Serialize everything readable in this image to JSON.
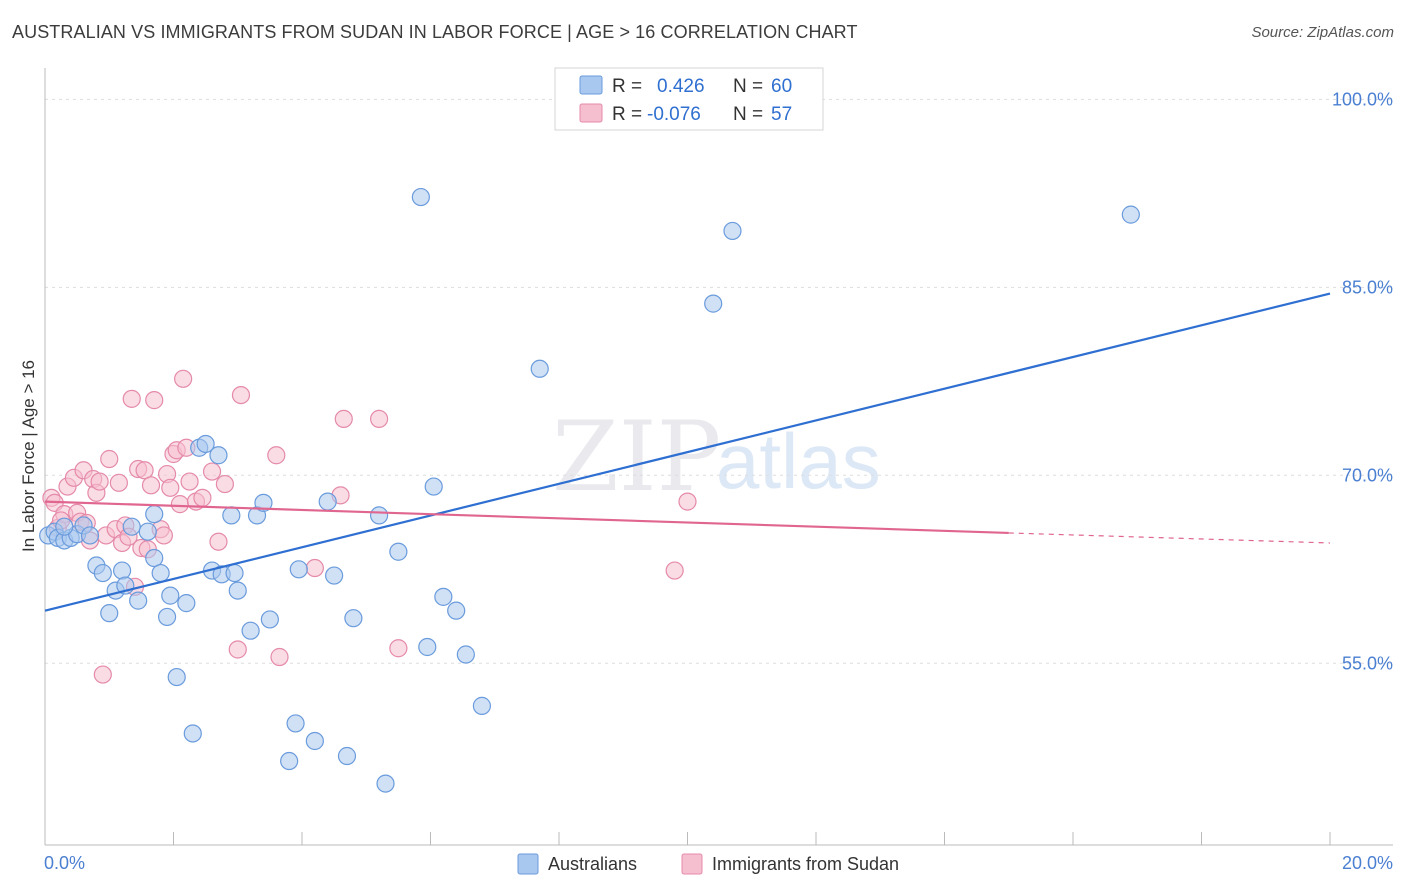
{
  "title": "AUSTRALIAN VS IMMIGRANTS FROM SUDAN IN LABOR FORCE | AGE > 16 CORRELATION CHART",
  "source": "Source: ZipAtlas.com",
  "watermark": {
    "zip": "ZIP",
    "atlas": "atlas"
  },
  "colors": {
    "australians_fill": "#a9c8ef",
    "australians_stroke": "#6a9bdc",
    "australians_line": "#2e6fd1",
    "sudan_fill": "#f6bfd0",
    "sudan_stroke": "#e58aa9",
    "sudan_line": "#e0668f",
    "grid": "#dddddd",
    "tick_text": "#4a7fd1"
  },
  "stats_box": {
    "rows": [
      {
        "r_label": "R =",
        "r_value": "0.426",
        "n_label": "N =",
        "n_value": "60"
      },
      {
        "r_label": "R =",
        "r_value": "-0.076",
        "n_label": "N =",
        "n_value": "57"
      }
    ]
  },
  "chart_data": {
    "type": "scatter",
    "title": "AUSTRALIAN VS IMMIGRANTS FROM SUDAN IN LABOR FORCE | AGE > 16 CORRELATION CHART",
    "xlabel": "",
    "ylabel": "In Labor Force | Age > 16",
    "xlim": [
      0,
      20
    ],
    "ylim": [
      40.5,
      102.5
    ],
    "x_tick_labels": [
      {
        "value": 0,
        "label": "0.0%"
      },
      {
        "value": 20,
        "label": "20.0%"
      }
    ],
    "y_ticks": [
      {
        "value": 100,
        "label": "100.0%"
      },
      {
        "value": 85,
        "label": "85.0%"
      },
      {
        "value": 70,
        "label": "70.0%"
      },
      {
        "value": 55,
        "label": "55.0%"
      }
    ],
    "legend": [
      "Australians",
      "Immigrants from Sudan"
    ],
    "series": [
      {
        "name": "Australians",
        "r": 0.426,
        "n": 60,
        "trend": {
          "x0": 0,
          "y0": 59.2,
          "x1": 20,
          "y1": 84.5
        },
        "points": [
          [
            0.05,
            65.2
          ],
          [
            0.15,
            65.5
          ],
          [
            0.2,
            65.0
          ],
          [
            0.3,
            64.8
          ],
          [
            0.4,
            65.0
          ],
          [
            0.5,
            65.3
          ],
          [
            0.6,
            66.0
          ],
          [
            0.8,
            62.8
          ],
          [
            0.9,
            62.2
          ],
          [
            1.0,
            59.0
          ],
          [
            1.1,
            60.8
          ],
          [
            1.2,
            62.4
          ],
          [
            1.25,
            61.2
          ],
          [
            1.35,
            65.9
          ],
          [
            1.45,
            60.0
          ],
          [
            1.6,
            65.5
          ],
          [
            1.7,
            66.9
          ],
          [
            1.7,
            63.4
          ],
          [
            1.8,
            62.2
          ],
          [
            1.9,
            58.7
          ],
          [
            1.95,
            60.4
          ],
          [
            2.05,
            53.9
          ],
          [
            2.2,
            59.8
          ],
          [
            2.3,
            49.4
          ],
          [
            2.4,
            72.2
          ],
          [
            2.5,
            72.5
          ],
          [
            2.6,
            62.4
          ],
          [
            2.7,
            71.6
          ],
          [
            2.75,
            62.1
          ],
          [
            2.9,
            66.8
          ],
          [
            2.95,
            62.2
          ],
          [
            3.0,
            60.8
          ],
          [
            3.2,
            57.6
          ],
          [
            3.3,
            66.8
          ],
          [
            3.4,
            67.8
          ],
          [
            3.5,
            58.5
          ],
          [
            3.8,
            47.2
          ],
          [
            3.9,
            50.2
          ],
          [
            3.95,
            62.5
          ],
          [
            4.2,
            48.8
          ],
          [
            4.4,
            67.9
          ],
          [
            4.5,
            62.0
          ],
          [
            4.7,
            47.6
          ],
          [
            4.8,
            58.6
          ],
          [
            5.2,
            66.8
          ],
          [
            5.3,
            45.4
          ],
          [
            5.5,
            63.9
          ],
          [
            5.85,
            92.2
          ],
          [
            5.95,
            56.3
          ],
          [
            6.05,
            69.1
          ],
          [
            6.2,
            60.3
          ],
          [
            6.4,
            59.2
          ],
          [
            6.55,
            55.7
          ],
          [
            6.8,
            51.6
          ],
          [
            7.7,
            78.5
          ],
          [
            10.4,
            83.7
          ],
          [
            10.7,
            89.5
          ],
          [
            16.9,
            90.8
          ],
          [
            0.3,
            65.9
          ],
          [
            0.7,
            65.2
          ]
        ]
      },
      {
        "name": "Immigrants from Sudan",
        "r": -0.076,
        "n": 57,
        "trend": {
          "x0": 0,
          "y0": 67.9,
          "x1": 15,
          "y1": 65.4
        },
        "trend_dashed": {
          "x0": 15,
          "y0": 65.4,
          "x1": 20,
          "y1": 64.6
        },
        "points": [
          [
            0.1,
            68.2
          ],
          [
            0.15,
            67.8
          ],
          [
            0.2,
            65.8
          ],
          [
            0.3,
            66.9
          ],
          [
            0.35,
            69.1
          ],
          [
            0.45,
            69.8
          ],
          [
            0.5,
            67.0
          ],
          [
            0.55,
            66.3
          ],
          [
            0.6,
            70.4
          ],
          [
            0.7,
            64.8
          ],
          [
            0.75,
            69.7
          ],
          [
            0.8,
            68.6
          ],
          [
            0.85,
            69.5
          ],
          [
            0.9,
            54.1
          ],
          [
            0.95,
            65.2
          ],
          [
            1.0,
            71.3
          ],
          [
            1.1,
            65.7
          ],
          [
            1.2,
            64.6
          ],
          [
            1.25,
            66.0
          ],
          [
            1.3,
            65.1
          ],
          [
            1.35,
            76.1
          ],
          [
            1.4,
            61.1
          ],
          [
            1.45,
            70.5
          ],
          [
            1.5,
            64.2
          ],
          [
            1.55,
            70.4
          ],
          [
            1.6,
            64.1
          ],
          [
            1.65,
            69.2
          ],
          [
            1.7,
            76.0
          ],
          [
            1.8,
            65.7
          ],
          [
            1.85,
            65.2
          ],
          [
            1.9,
            70.1
          ],
          [
            1.95,
            69.0
          ],
          [
            2.0,
            71.7
          ],
          [
            2.05,
            72.0
          ],
          [
            2.1,
            67.7
          ],
          [
            2.15,
            77.7
          ],
          [
            2.2,
            72.2
          ],
          [
            2.25,
            69.5
          ],
          [
            2.35,
            67.9
          ],
          [
            2.6,
            70.3
          ],
          [
            2.7,
            64.7
          ],
          [
            2.8,
            69.3
          ],
          [
            3.0,
            56.1
          ],
          [
            3.05,
            76.4
          ],
          [
            3.6,
            71.6
          ],
          [
            3.65,
            55.5
          ],
          [
            4.2,
            62.6
          ],
          [
            4.6,
            68.4
          ],
          [
            4.65,
            74.5
          ],
          [
            5.2,
            74.5
          ],
          [
            5.5,
            56.2
          ],
          [
            10.0,
            67.9
          ],
          [
            9.8,
            62.4
          ],
          [
            0.25,
            66.4
          ],
          [
            1.15,
            69.4
          ],
          [
            2.45,
            68.2
          ],
          [
            0.65,
            66.2
          ]
        ]
      }
    ]
  }
}
